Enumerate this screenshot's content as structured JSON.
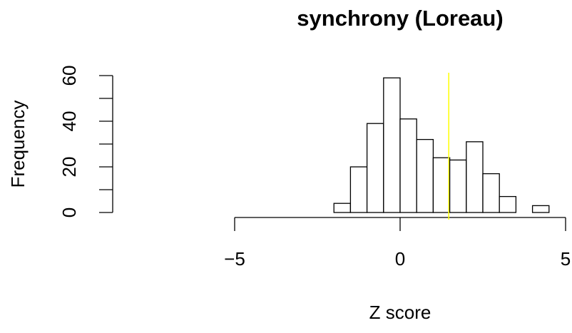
{
  "chart_data": {
    "type": "histogram",
    "title": "synchrony (Loreau)",
    "x_label": "Z score",
    "y_label": "Frequency",
    "bins": [
      -2,
      -1.5,
      -1,
      -0.5,
      0,
      0.5,
      1,
      1.5,
      2,
      2.5,
      3,
      3.5,
      4,
      4.5
    ],
    "values": [
      4,
      20,
      39,
      59,
      41,
      32,
      24,
      23,
      31,
      17,
      7,
      0,
      3
    ],
    "color": "#ffffff",
    "edge_color": "#000000",
    "vline": 1.47,
    "vline_color": "#ffff00",
    "xlim": [
      -5,
      5
    ],
    "xticks": [
      {
        "value": -5,
        "label": "−5"
      },
      0,
      5
    ],
    "ylim": [
      0,
      60
    ],
    "yticks": [
      0,
      20,
      40,
      60
    ]
  }
}
